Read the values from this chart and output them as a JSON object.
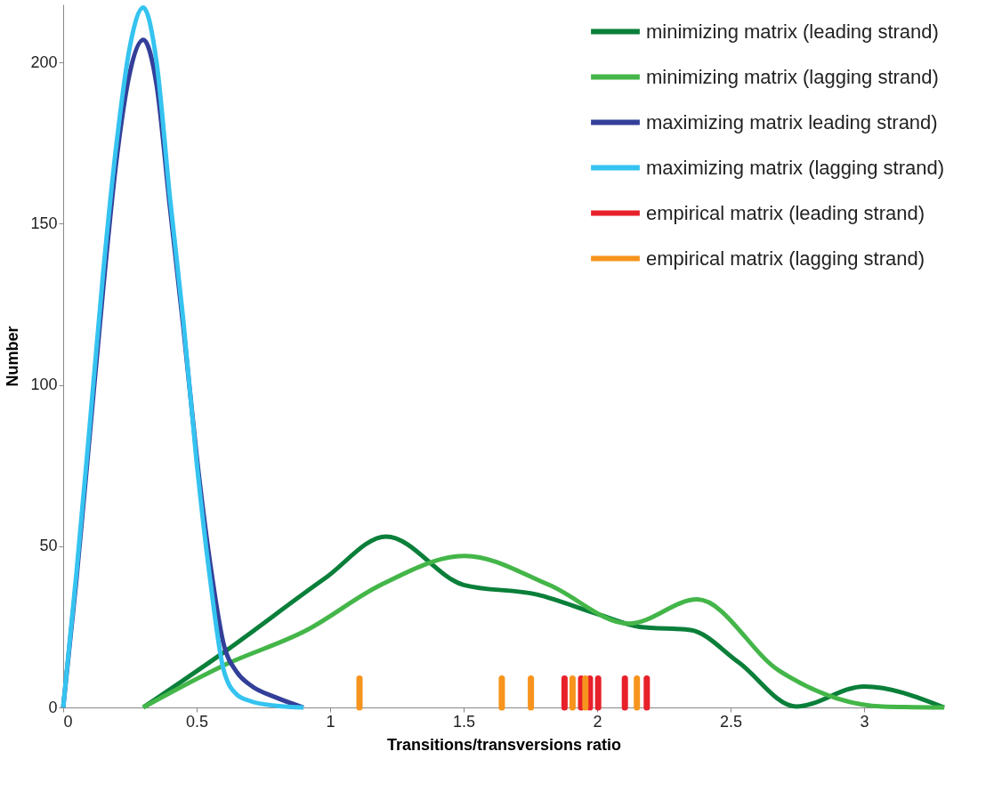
{
  "chart_data": {
    "type": "line",
    "xlabel": "Transitions/transversions ratio",
    "ylabel": "Number",
    "xlim": [
      0,
      3.3
    ],
    "xticks": [
      0,
      0.5,
      1,
      1.5,
      2,
      2.5,
      3
    ],
    "ylim": [
      0,
      218
    ],
    "yticks": [
      0,
      50,
      100,
      150,
      200
    ],
    "grid": false,
    "legend": "top right",
    "marker": "none",
    "line_style": "solid",
    "series": [
      {
        "name": "minimizing matrix (leading strand)",
        "color": "#0a7f3a",
        "x": [
          0.3,
          0.6,
          0.98,
          1.21,
          1.5,
          1.775,
          2.0,
          2.16,
          2.35,
          2.53,
          2.745,
          3.0,
          3.3
        ],
        "values": [
          0,
          17,
          40,
          53,
          38,
          35,
          29,
          25,
          24,
          14,
          0.3,
          6.5,
          0
        ]
      },
      {
        "name": "minimizing matrix (lagging strand)",
        "color": "#44b649",
        "x": [
          0.3,
          0.6,
          0.913,
          1.19,
          1.505,
          1.82,
          2.12,
          2.375,
          2.68,
          3.07,
          3.3
        ],
        "values": [
          0,
          13,
          24,
          38,
          47,
          38,
          26,
          33.5,
          11.5,
          0.3,
          0
        ]
      },
      {
        "name": "maximizing matrix leading strand)",
        "color": "#333f99",
        "x": [
          0,
          0.05,
          0.1,
          0.15,
          0.2,
          0.25,
          0.3,
          0.35,
          0.4,
          0.45,
          0.5,
          0.55,
          0.6,
          0.65,
          0.7,
          0.8,
          0.9
        ],
        "values": [
          0,
          40,
          85,
          130,
          170,
          197,
          207,
          193,
          155,
          118,
          78,
          45,
          20,
          11,
          7,
          3,
          0
        ]
      },
      {
        "name": "maximizing matrix (lagging strand)",
        "color": "#35c3f0",
        "x": [
          0,
          0.05,
          0.1,
          0.15,
          0.2,
          0.25,
          0.3,
          0.35,
          0.4,
          0.45,
          0.5,
          0.55,
          0.6,
          0.65,
          0.7,
          0.8,
          0.9
        ],
        "values": [
          0,
          42,
          88,
          135,
          175,
          205,
          217,
          200,
          158,
          120,
          76,
          40,
          12,
          4,
          2,
          0.5,
          0
        ]
      },
      {
        "name": "empirical matrix (leading strand)",
        "color": "#e8202a",
        "type": "bar",
        "x": [
          1.878,
          1.94,
          1.973,
          2.004,
          2.104,
          2.186
        ],
        "values": [
          9,
          9,
          9,
          9,
          9,
          9
        ]
      },
      {
        "name": "empirical matrix (lagging strand)",
        "color": "#f7941d",
        "type": "bar",
        "x": [
          1.11,
          1.643,
          1.752,
          1.908,
          1.956,
          2.149
        ],
        "values": [
          9,
          9,
          9,
          9,
          9,
          9
        ]
      }
    ]
  }
}
